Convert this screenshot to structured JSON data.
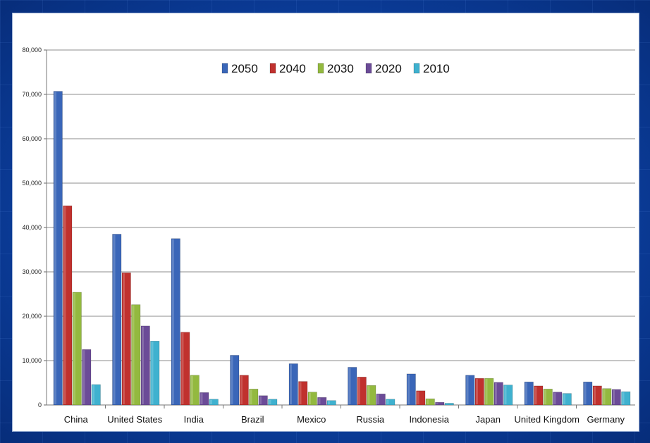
{
  "chart_data": {
    "type": "bar",
    "title": "",
    "xlabel": "",
    "ylabel": "",
    "ylim": [
      0,
      80000
    ],
    "yticks": [
      "0",
      "10,000",
      "20,000",
      "30,000",
      "40,000",
      "50,000",
      "60,000",
      "70,000",
      "80,000"
    ],
    "grid": true,
    "legend_position": "top-center",
    "categories": [
      "China",
      "United States",
      "India",
      "Brazil",
      "Mexico",
      "Russia",
      "Indonesia",
      "Japan",
      "United Kingdom",
      "Germany"
    ],
    "series": [
      {
        "name": "2050",
        "color": "#3a66b8",
        "values": [
          70700,
          38500,
          37500,
          11200,
          9300,
          8500,
          7000,
          6700,
          5200,
          5200
        ]
      },
      {
        "name": "2040",
        "color": "#c0312e",
        "values": [
          44900,
          29800,
          16400,
          6700,
          5300,
          6300,
          3200,
          6000,
          4300,
          4300
        ]
      },
      {
        "name": "2030",
        "color": "#93b93f",
        "values": [
          25400,
          22600,
          6700,
          3600,
          2900,
          4400,
          1400,
          6000,
          3600,
          3700
        ]
      },
      {
        "name": "2020",
        "color": "#6b4b97",
        "values": [
          12500,
          17800,
          2800,
          2100,
          1700,
          2500,
          600,
          5100,
          2900,
          3500
        ]
      },
      {
        "name": "2010",
        "color": "#3fb1cf",
        "values": [
          4600,
          14400,
          1300,
          1300,
          1000,
          1300,
          400,
          4500,
          2600,
          3000
        ]
      }
    ]
  }
}
